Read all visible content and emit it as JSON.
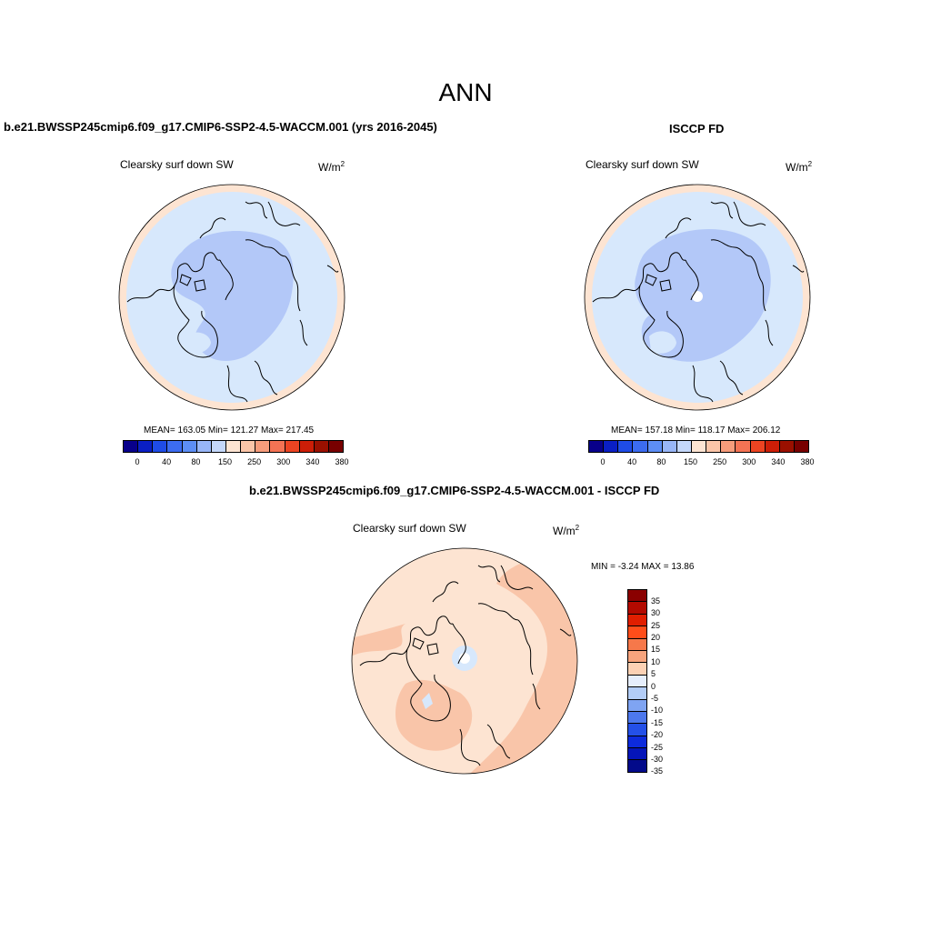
{
  "page": {
    "title": "ANN"
  },
  "panels": [
    {
      "case_title": "b.e21.BWSSP245cmip6.f09_g17.CMIP6-SSP2-4.5-WACCM.001 (yrs 2016-2045)",
      "variable": "Clearsky surf down SW",
      "units_base": "W/m",
      "units_exp": "2",
      "stats": "MEAN= 163.05  Min= 121.27  Max= 217.45",
      "colorbar_ticks": [
        "0",
        "40",
        "80",
        "150",
        "250",
        "300",
        "340",
        "380"
      ]
    },
    {
      "case_title": "ISCCP FD",
      "variable": "Clearsky surf down SW",
      "units_base": "W/m",
      "units_exp": "2",
      "stats": "MEAN= 157.18  Min= 118.17  Max= 206.12",
      "colorbar_ticks": [
        "0",
        "40",
        "80",
        "150",
        "250",
        "300",
        "340",
        "380"
      ]
    },
    {
      "case_title": "b.e21.BWSSP245cmip6.f09_g17.CMIP6-SSP2-4.5-WACCM.001 - ISCCP FD",
      "variable": "Clearsky surf down SW",
      "units_base": "W/m",
      "units_exp": "2",
      "stats": "MIN =  -3.24 MAX =  13.86",
      "colorbar_ticks": [
        "35",
        "30",
        "25",
        "20",
        "15",
        "10",
        "5",
        "0",
        "-5",
        "-10",
        "-15",
        "-20",
        "-25",
        "-30",
        "-35"
      ]
    }
  ],
  "colors": {
    "field_ramp": [
      "#08008a",
      "#0a1fc4",
      "#1f4ce6",
      "#3c6cf0",
      "#5d8ef5",
      "#98b6f7",
      "#c4d7fa",
      "#fde4d2",
      "#fbc5a8",
      "#f69c7b",
      "#f47354",
      "#ec4422",
      "#cc1e07",
      "#9a1000",
      "#780000"
    ],
    "diff_ramp": [
      "#8a0000",
      "#b30a00",
      "#e01e00",
      "#ff4d1a",
      "#f6784a",
      "#f7a47d",
      "#fcd1b4",
      "#e6eefc",
      "#b3cdf7",
      "#7fa4f2",
      "#4d78ed",
      "#2450e8",
      "#0d2bdc",
      "#0515b8",
      "#030a8a"
    ],
    "land_outline": "#000000",
    "low_sw": "#b3c8f8",
    "mid_sw": "#d7e8fc",
    "high_sw": "#fde4d2",
    "diff_background": "#fde4d2",
    "diff_warm": "#f9c5a9",
    "diff_cool": "#d7e8fc"
  }
}
